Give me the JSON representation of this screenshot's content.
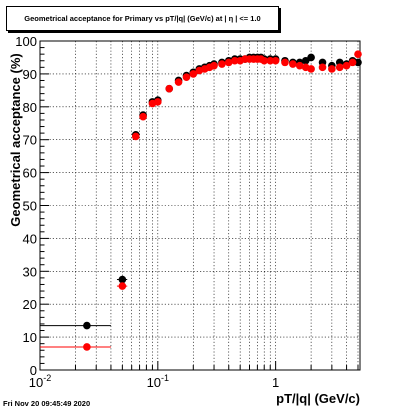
{
  "title": "Geometrical acceptance for Primary vs pT/|q| (GeV/c) at | η | <= 1.0",
  "footer_timestamp": "Fri Nov 20 09:45:49 2020",
  "chart_data": {
    "type": "scatter",
    "title": "Geometrical acceptance for Primary vs pT/|q| (GeV/c) at | η | <= 1.0",
    "xlabel": "pT/|q| (GeV/c)",
    "ylabel": "Geometrical acceptance (%)",
    "xscale": "log",
    "xlim": [
      0.01,
      5.2
    ],
    "ylim": [
      0,
      100
    ],
    "grid": true,
    "x_ticks": [
      {
        "value": 0.01,
        "base": "10",
        "exp": "-2"
      },
      {
        "value": 0.1,
        "base": "10",
        "exp": "-1"
      },
      {
        "value": 1,
        "base": "1",
        "exp": ""
      }
    ],
    "y_ticks": [
      0,
      10,
      20,
      30,
      40,
      50,
      60,
      70,
      80,
      90,
      100
    ],
    "colors": {
      "series_black": "#000000",
      "series_red": "#ff0000"
    },
    "series": [
      {
        "color": "#000000",
        "x": [
          0.025,
          0.05,
          0.065,
          0.075,
          0.09,
          0.1,
          0.125,
          0.15,
          0.175,
          0.2,
          0.225,
          0.25,
          0.275,
          0.3,
          0.35,
          0.4,
          0.45,
          0.5,
          0.55,
          0.6,
          0.65,
          0.7,
          0.75,
          0.8,
          0.9,
          1.0,
          1.2,
          1.4,
          1.6,
          1.8,
          2.0,
          2.5,
          3.0,
          3.5,
          4.0,
          4.5,
          5.0
        ],
        "xerr": [
          0.015,
          0.005,
          0,
          0,
          0,
          0,
          0,
          0,
          0,
          0,
          0,
          0,
          0,
          0,
          0,
          0,
          0,
          0,
          0,
          0,
          0,
          0,
          0,
          0,
          0,
          0,
          0,
          0,
          0,
          0,
          0,
          0,
          0,
          0,
          0,
          0,
          0
        ],
        "y": [
          13.5,
          27.5,
          71.5,
          77.5,
          81.5,
          82.0,
          85.5,
          88.0,
          89.5,
          90.5,
          91.5,
          92.0,
          92.5,
          93.0,
          93.5,
          94.0,
          94.5,
          94.5,
          94.5,
          95.0,
          95.0,
          95.0,
          95.0,
          94.5,
          94.5,
          94.5,
          94.0,
          93.5,
          93.5,
          94.0,
          95.0,
          93.5,
          92.5,
          93.5,
          93.0,
          94.0,
          93.5
        ]
      },
      {
        "color": "#ff0000",
        "x": [
          0.025,
          0.05,
          0.065,
          0.075,
          0.09,
          0.1,
          0.125,
          0.15,
          0.175,
          0.2,
          0.225,
          0.25,
          0.275,
          0.3,
          0.35,
          0.4,
          0.45,
          0.5,
          0.55,
          0.6,
          0.65,
          0.7,
          0.75,
          0.8,
          0.9,
          1.0,
          1.2,
          1.4,
          1.6,
          1.8,
          2.0,
          2.5,
          3.0,
          3.5,
          4.0,
          4.5,
          5.0
        ],
        "xerr": [
          0.015,
          0.005,
          0,
          0,
          0,
          0,
          0,
          0,
          0,
          0,
          0,
          0,
          0,
          0,
          0,
          0,
          0,
          0,
          0,
          0,
          0,
          0,
          0,
          0,
          0,
          0,
          0,
          0,
          0,
          0,
          0,
          0,
          0,
          0,
          0,
          0,
          0
        ],
        "y": [
          7.0,
          25.5,
          71.0,
          77.0,
          81.0,
          81.5,
          85.5,
          87.5,
          89.0,
          90.0,
          91.0,
          91.5,
          92.0,
          92.5,
          93.0,
          93.5,
          94.0,
          94.0,
          94.5,
          94.5,
          94.5,
          94.5,
          94.5,
          94.0,
          94.0,
          94.0,
          93.5,
          93.0,
          92.5,
          92.0,
          91.5,
          92.0,
          91.5,
          92.0,
          92.5,
          93.5,
          96.0
        ]
      }
    ]
  }
}
